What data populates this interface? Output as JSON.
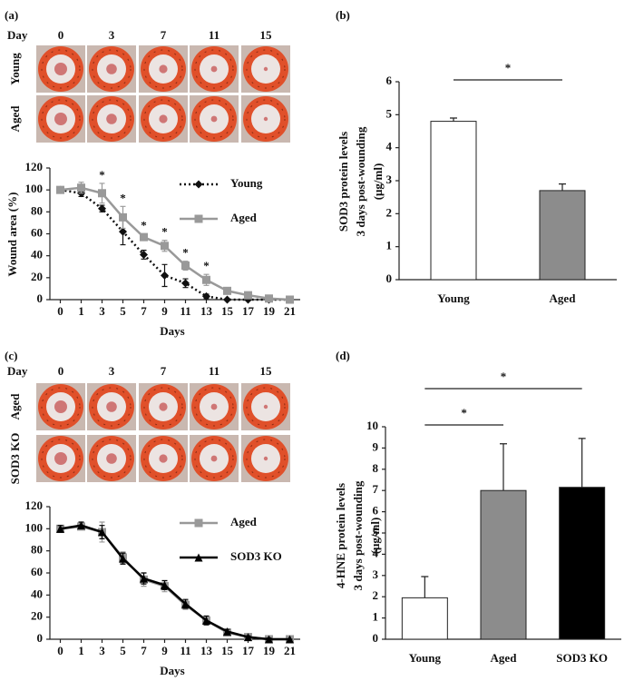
{
  "photo_grids": [
    {
      "day_label": "Day",
      "days": [
        "0",
        "3",
        "7",
        "11",
        "15"
      ],
      "rows": [
        "Young",
        "Aged"
      ]
    },
    {
      "day_label": "Day",
      "days": [
        "0",
        "3",
        "7",
        "11",
        "15"
      ],
      "rows": [
        "Aged",
        "SOD3 KO"
      ]
    }
  ],
  "chart_data": [
    {
      "type": "line",
      "panel_label": "(a)",
      "ylabel": [
        "Wound area  (%)"
      ],
      "xlabel": "Days",
      "categories": [
        "0",
        "1",
        "3",
        "5",
        "7",
        "9",
        "11",
        "13",
        "15",
        "17",
        "19",
        "21"
      ],
      "series": [
        {
          "name": "Young",
          "color": "#111111",
          "dash": "dotted",
          "marker": "diamond",
          "values": [
            100,
            97,
            83,
            62,
            41,
            22,
            15,
            3,
            0,
            0,
            0,
            0
          ],
          "errors": [
            2,
            3,
            3,
            12,
            4,
            10,
            4,
            2,
            0,
            0,
            0,
            0
          ]
        },
        {
          "name": "Aged",
          "color": "#999999",
          "dash": "solid",
          "marker": "square",
          "values": [
            100,
            102,
            97,
            75,
            57,
            49,
            31,
            18,
            8,
            4,
            1,
            0
          ],
          "errors": [
            3,
            5,
            9,
            10,
            3,
            5,
            4,
            5,
            2,
            1,
            1,
            0
          ]
        }
      ],
      "annotations": [
        {
          "text": "*",
          "x": "3"
        },
        {
          "text": "*",
          "x": "5"
        },
        {
          "text": "*",
          "x": "7"
        },
        {
          "text": "*",
          "x": "9"
        },
        {
          "text": "*",
          "x": "11"
        },
        {
          "text": "*",
          "x": "13"
        }
      ],
      "ylim": [
        0,
        120
      ],
      "yticks": [
        0,
        20,
        40,
        60,
        80,
        100,
        120
      ]
    },
    {
      "type": "bar",
      "panel_label": "(b)",
      "ylabel": [
        "SOD3 protein levels",
        "3 days post-wounding",
        "(μg/ml)"
      ],
      "categories": [
        "Young",
        "Aged"
      ],
      "values": [
        4.8,
        2.7
      ],
      "errors": [
        0.1,
        0.2
      ],
      "colors": [
        "#ffffff",
        "#8c8c8c"
      ],
      "significance": [
        {
          "text": "*",
          "between": [
            "Young",
            "Aged"
          ]
        }
      ],
      "ylim": [
        0,
        6
      ],
      "yticks": [
        0,
        1,
        2,
        3,
        4,
        5,
        6
      ]
    },
    {
      "type": "line",
      "panel_label": "(c)",
      "xlabel": "Days",
      "categories": [
        "0",
        "1",
        "3",
        "5",
        "7",
        "9",
        "11",
        "13",
        "15",
        "17",
        "19",
        "21"
      ],
      "series": [
        {
          "name": "Aged",
          "color": "#999999",
          "dash": "solid",
          "marker": "square",
          "values": [
            100,
            102,
            97,
            74,
            54,
            48,
            31,
            17,
            6,
            2,
            0,
            0
          ],
          "errors": [
            3,
            3,
            9,
            5,
            6,
            5,
            4,
            4,
            2,
            1,
            1,
            0
          ]
        },
        {
          "name": "SOD3 KO",
          "color": "#000000",
          "dash": "solid",
          "marker": "triangle",
          "values": [
            100,
            103,
            97,
            73,
            55,
            49,
            32,
            17,
            7,
            2,
            0,
            0
          ],
          "errors": [
            3,
            3,
            6,
            5,
            5,
            4,
            4,
            4,
            2,
            1,
            1,
            0
          ]
        }
      ],
      "ylim": [
        0,
        120
      ],
      "yticks": [
        0,
        20,
        40,
        60,
        80,
        100,
        120
      ]
    },
    {
      "type": "bar",
      "panel_label": "(d)",
      "ylabel": [
        "4-HNE protein levels",
        "3 days post-wounding",
        "(μg/ml)"
      ],
      "categories": [
        "Young",
        "Aged",
        "SOD3 KO"
      ],
      "values": [
        1.95,
        7.0,
        7.15
      ],
      "errors": [
        1.0,
        2.2,
        2.3
      ],
      "colors": [
        "#ffffff",
        "#8c8c8c",
        "#000000"
      ],
      "significance": [
        {
          "text": "*",
          "between": [
            "Young",
            "Aged"
          ]
        },
        {
          "text": "*",
          "between": [
            "Young",
            "SOD3 KO"
          ]
        }
      ],
      "ylim": [
        0,
        10
      ],
      "yticks": [
        0,
        1,
        2,
        3,
        4,
        5,
        6,
        7,
        8,
        9,
        10
      ]
    }
  ]
}
